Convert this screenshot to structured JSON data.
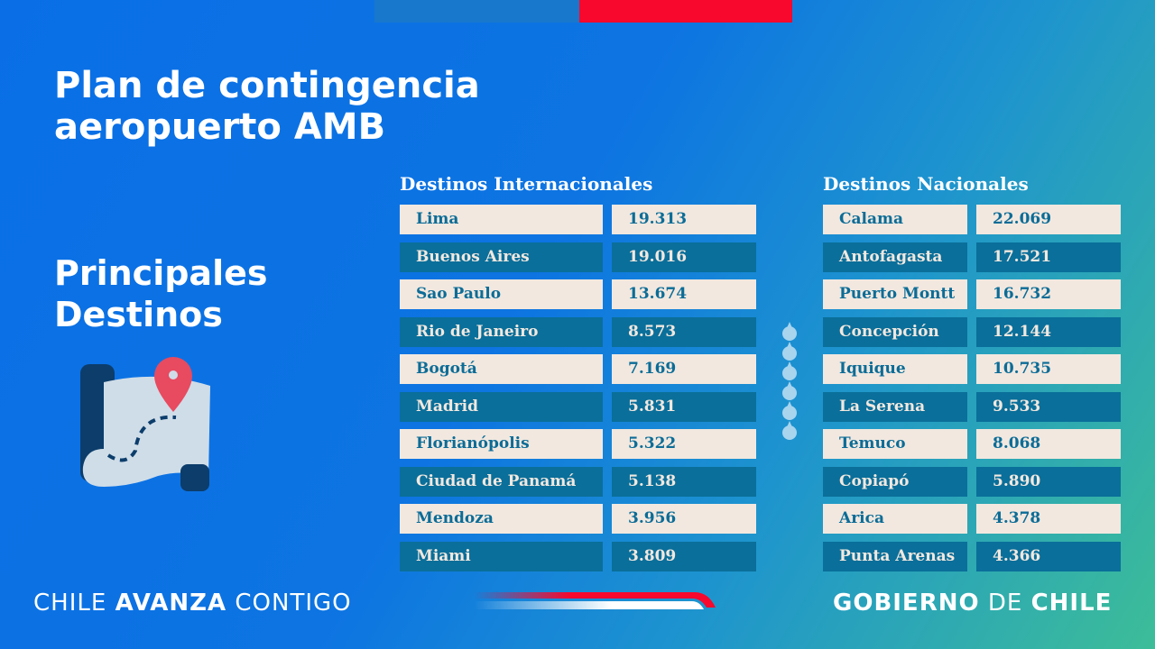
{
  "title": {
    "line1": "Plan de contingencia",
    "line2": "aeropuerto AMB"
  },
  "subtitle": {
    "line1": "Principales",
    "line2": "Destinos"
  },
  "international": {
    "header": "Destinos Internacionales",
    "rows": [
      {
        "name": "Lima",
        "value": "19.313"
      },
      {
        "name": "Buenos Aires",
        "value": "19.016"
      },
      {
        "name": "Sao Paulo",
        "value": "13.674"
      },
      {
        "name": "Rio de Janeiro",
        "value": "8.573"
      },
      {
        "name": "Bogotá",
        "value": "7.169"
      },
      {
        "name": "Madrid",
        "value": "5.831"
      },
      {
        "name": "Florianópolis",
        "value": "5.322"
      },
      {
        "name": "Ciudad de Panamá",
        "value": "5.138"
      },
      {
        "name": "Mendoza",
        "value": "3.956"
      },
      {
        "name": "Miami",
        "value": "3.809"
      }
    ]
  },
  "national": {
    "header": "Destinos Nacionales",
    "rows": [
      {
        "name": "Calama",
        "value": "22.069"
      },
      {
        "name": "Antofagasta",
        "value": "17.521"
      },
      {
        "name": "Puerto Montt",
        "value": "16.732"
      },
      {
        "name": "Concepción",
        "value": "12.144"
      },
      {
        "name": "Iquique",
        "value": "10.735"
      },
      {
        "name": "La Serena",
        "value": "9.533"
      },
      {
        "name": "Temuco",
        "value": "8.068"
      },
      {
        "name": "Copiapó",
        "value": "5.890"
      },
      {
        "name": "Arica",
        "value": "4.378"
      },
      {
        "name": "Punta Arenas",
        "value": "4.366"
      }
    ]
  },
  "footer": {
    "left_a": "CHILE ",
    "left_b": "AVANZA",
    "left_c": " CONTIGO",
    "right_a": "GOBIERNO",
    "right_b": " DE ",
    "right_c": "CHILE"
  },
  "colors": {
    "accent_red": "#f7082c",
    "row_light": "#f2e8df",
    "row_dark": "#0a6f9a"
  },
  "icons": [
    "map-pin-icon"
  ]
}
